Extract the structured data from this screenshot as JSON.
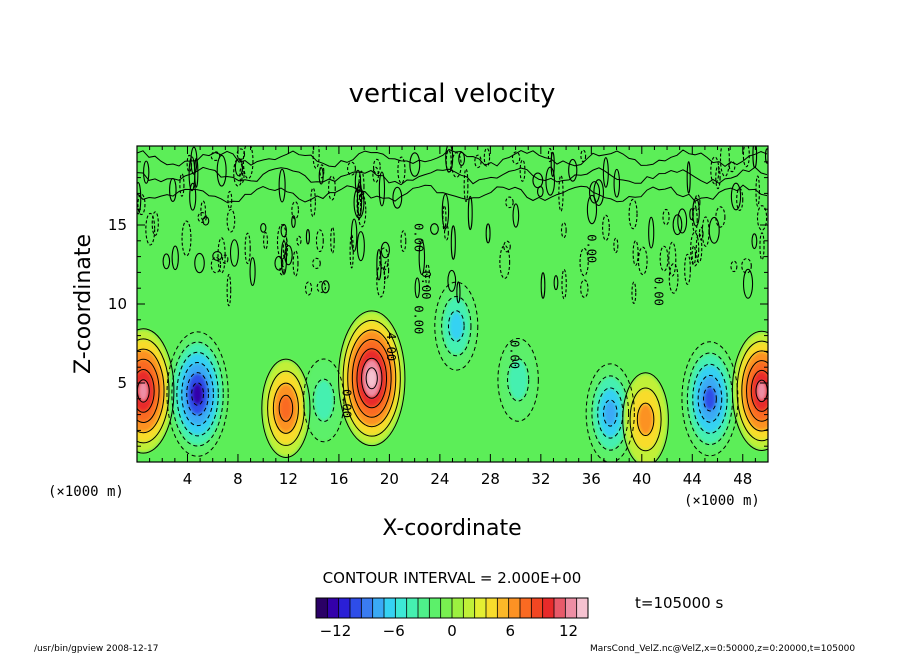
{
  "chart_data": {
    "type": "heatmap",
    "title": "vertical velocity",
    "xlabel": "X-coordinate",
    "ylabel": "Z-coordinate",
    "x_unit_left": "(×1000 m)",
    "x_unit_right": "(×1000 m)",
    "xlim": [
      0,
      50
    ],
    "ylim": [
      0,
      20
    ],
    "x_ticks": [
      "4",
      "8",
      "12",
      "16",
      "20",
      "24",
      "28",
      "32",
      "36",
      "40",
      "44",
      "48"
    ],
    "x_tick_values": [
      4,
      8,
      12,
      16,
      20,
      24,
      28,
      32,
      36,
      40,
      44,
      48
    ],
    "y_ticks": [
      "5",
      "10",
      "15"
    ],
    "y_tick_values": [
      5,
      10,
      15
    ],
    "contour_interval_text": "CONTOUR INTERVAL = 2.000E+00",
    "contour_labels": [
      "4.00",
      "0.00",
      "0.00",
      "0.00",
      "0.00",
      "0.00",
      "0.00",
      "0.00"
    ],
    "colorbar": {
      "range": [
        -14,
        14
      ],
      "tick_labels": [
        "−12",
        "−6",
        "0",
        "6",
        "12"
      ],
      "tick_values": [
        -12,
        -6,
        0,
        6,
        12
      ],
      "colors": [
        "#2a0066",
        "#3300aa",
        "#2a1fd6",
        "#2e4de8",
        "#3a7cf2",
        "#3aaaf5",
        "#35d2f2",
        "#3de8d6",
        "#45f0b0",
        "#4ef08a",
        "#5cf06a",
        "#78f050",
        "#9cf040",
        "#c0f038",
        "#e4ee32",
        "#f8dc2c",
        "#fcb828",
        "#fc9224",
        "#fa6a22",
        "#f24622",
        "#e82a2a",
        "#e85a6a",
        "#ee8ea4",
        "#f5c2d0"
      ]
    },
    "time_text": "t=105000 s",
    "features": [
      {
        "x": 0.5,
        "z": 4.5,
        "w": 12,
        "kind": "updraft"
      },
      {
        "x": 4.8,
        "z": 4.3,
        "w": -12,
        "kind": "downdraft"
      },
      {
        "x": 11.8,
        "z": 3.4,
        "w": 7,
        "kind": "updraft"
      },
      {
        "x": 14.8,
        "z": 3.9,
        "w": -4,
        "kind": "downdraft"
      },
      {
        "x": 18.6,
        "z": 5.3,
        "w": 14,
        "kind": "updraft"
      },
      {
        "x": 25.3,
        "z": 8.6,
        "w": -5,
        "kind": "downdraft"
      },
      {
        "x": 30.2,
        "z": 5.2,
        "w": -4,
        "kind": "downdraft"
      },
      {
        "x": 37.5,
        "z": 3.1,
        "w": -7,
        "kind": "downdraft"
      },
      {
        "x": 40.3,
        "z": 2.7,
        "w": 6,
        "kind": "updraft"
      },
      {
        "x": 45.4,
        "z": 4.0,
        "w": -10,
        "kind": "downdraft"
      },
      {
        "x": 49.5,
        "z": 4.5,
        "w": 11,
        "kind": "updraft"
      }
    ]
  },
  "footer": {
    "program": "/usr/bin/gpview   2008-12-17",
    "source": "MarsCond_VelZ.nc@VelZ,x=0:50000,z=0:20000,t=105000"
  }
}
